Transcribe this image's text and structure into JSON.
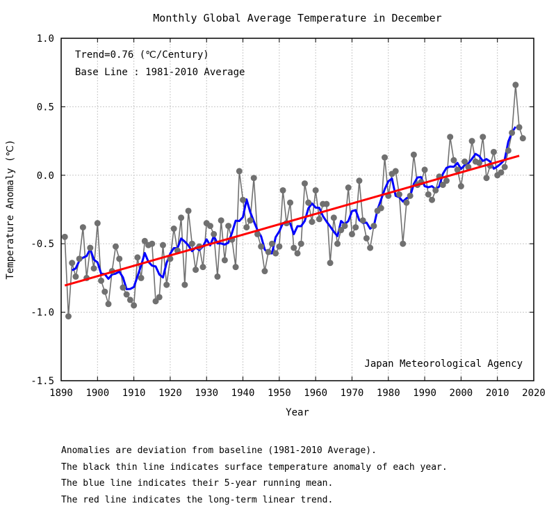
{
  "chart_data": {
    "type": "line",
    "title": "Monthly Global Average Temperature in December",
    "xlabel": "Year",
    "ylabel": "Temperature Anomaly (℃)",
    "xlim": [
      1890,
      2020
    ],
    "ylim": [
      -1.5,
      1.0
    ],
    "xticks": [
      1890,
      1900,
      1910,
      1920,
      1930,
      1940,
      1950,
      1960,
      1970,
      1980,
      1990,
      2000,
      2010,
      2020
    ],
    "yticks": [
      1.0,
      0.5,
      0.0,
      -0.5,
      -1.0,
      -1.5
    ],
    "ytick_labels": [
      "1.0",
      "0.5",
      "0.0",
      "-0.5",
      "-1.0",
      "-1.5"
    ],
    "grid": true,
    "annotations": {
      "trend": "Trend=0.76 (℃/Century)",
      "baseline": "Base Line : 1981-2010 Average",
      "source": "Japan Meteorological Agency"
    },
    "start_year": 1891,
    "series": [
      {
        "name": "Annual anomaly",
        "color": "#707070",
        "type": "line+markers",
        "values": [
          -0.45,
          -1.03,
          -0.64,
          -0.74,
          -0.61,
          -0.38,
          -0.75,
          -0.53,
          -0.68,
          -0.35,
          -0.77,
          -0.85,
          -0.94,
          -0.7,
          -0.52,
          -0.61,
          -0.82,
          -0.87,
          -0.91,
          -0.95,
          -0.6,
          -0.75,
          -0.48,
          -0.51,
          -0.5,
          -0.92,
          -0.89,
          -0.51,
          -0.8,
          -0.61,
          -0.39,
          -0.55,
          -0.31,
          -0.8,
          -0.26,
          -0.5,
          -0.69,
          -0.52,
          -0.67,
          -0.35,
          -0.37,
          -0.43,
          -0.74,
          -0.33,
          -0.62,
          -0.37,
          -0.47,
          -0.67,
          0.03,
          -0.18,
          -0.38,
          -0.33,
          -0.02,
          -0.43,
          -0.52,
          -0.7,
          -0.56,
          -0.5,
          -0.57,
          -0.52,
          -0.11,
          -0.35,
          -0.2,
          -0.53,
          -0.57,
          -0.5,
          -0.06,
          -0.2,
          -0.34,
          -0.11,
          -0.32,
          -0.21,
          -0.21,
          -0.64,
          -0.31,
          -0.5,
          -0.4,
          -0.37,
          -0.09,
          -0.43,
          -0.38,
          -0.04,
          -0.33,
          -0.46,
          -0.53,
          -0.37,
          -0.26,
          -0.24,
          0.13,
          -0.15,
          0.01,
          0.03,
          -0.14,
          -0.5,
          -0.2,
          -0.15,
          0.15,
          -0.07,
          -0.05,
          0.04,
          -0.14,
          -0.18,
          -0.11,
          -0.01,
          -0.07,
          -0.04,
          0.28,
          0.11,
          0.04,
          -0.08,
          0.1,
          0.06,
          0.25,
          0.1,
          0.09,
          0.28,
          -0.02,
          0.07,
          0.17,
          0.0,
          0.02,
          0.06,
          0.18,
          0.31,
          0.66,
          0.35,
          0.27
        ]
      },
      {
        "name": "5-year running mean",
        "color": "#0000ff",
        "type": "line",
        "window": 5
      },
      {
        "name": "Long-term linear trend",
        "color": "#ff0000",
        "type": "line",
        "slope_per_century": 0.76
      }
    ]
  },
  "notes": [
    "Anomalies are deviation from baseline (1981-2010 Average).",
    "The black thin line indicates surface temperature anomaly of each year.",
    "The blue line indicates their 5-year running mean.",
    "The red line indicates the long-term linear trend."
  ]
}
